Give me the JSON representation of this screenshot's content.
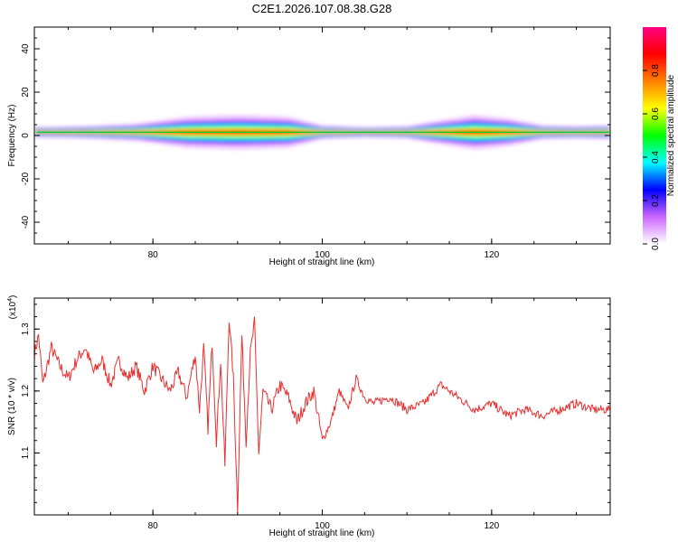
{
  "title": "C2E1.2026.107.08.38.G28",
  "colors": {
    "snr_line": "#e83030",
    "spectrogram_ridge": "#00cc33"
  },
  "chart_data": [
    {
      "type": "heatmap",
      "xlabel": "Height of straight line (km)",
      "ylabel": "Frequency (Hz)",
      "xlim": [
        66,
        134
      ],
      "ylim": [
        -50,
        50
      ],
      "x_ticks": [
        {
          "value": 80,
          "label": "80"
        },
        {
          "value": 100,
          "label": "100"
        },
        {
          "value": 120,
          "label": "120"
        }
      ],
      "y_ticks": [
        {
          "value": 40,
          "label": "40"
        },
        {
          "value": 20,
          "label": "20"
        },
        {
          "value": 0,
          "label": "0"
        },
        {
          "value": -20,
          "label": "-20"
        },
        {
          "value": -40,
          "label": "-40"
        }
      ],
      "ridge_frequency_hz": 1.5,
      "band_halfwidth_hz": [
        {
          "x": 66,
          "w": 1.5
        },
        {
          "x": 72,
          "w": 1.8
        },
        {
          "x": 78,
          "w": 2.5
        },
        {
          "x": 84,
          "w": 4.5
        },
        {
          "x": 90,
          "w": 5
        },
        {
          "x": 96,
          "w": 4.5
        },
        {
          "x": 100,
          "w": 2
        },
        {
          "x": 105,
          "w": 1.5
        },
        {
          "x": 110,
          "w": 1.8
        },
        {
          "x": 114,
          "w": 3.5
        },
        {
          "x": 118,
          "w": 5
        },
        {
          "x": 122,
          "w": 4
        },
        {
          "x": 126,
          "w": 2
        },
        {
          "x": 130,
          "w": 1.8
        },
        {
          "x": 134,
          "w": 2
        }
      ],
      "colorbar": {
        "label": "Normalized spectral amplitude",
        "range": [
          0,
          1
        ],
        "ticks": [
          {
            "value": 0.0,
            "label": "0.0"
          },
          {
            "value": 0.2,
            "label": "0.2"
          },
          {
            "value": 0.4,
            "label": "0.4"
          },
          {
            "value": 0.6,
            "label": "0.6"
          },
          {
            "value": 0.8,
            "label": "0.8"
          }
        ],
        "colormap": [
          "#ffffff",
          "#cc66ff",
          "#0000ff",
          "#00ffff",
          "#00ff00",
          "#ffff00",
          "#ff8000",
          "#ff0000",
          "#ff0080"
        ]
      }
    },
    {
      "type": "line",
      "xlabel": "Height of straight line (km)",
      "ylabel": "SNR (10 * v/v)",
      "y_multiplier_label": "(x10",
      "y_multiplier_exponent": "4",
      "y_multiplier_close": ")",
      "xlim": [
        66,
        134
      ],
      "ylim": [
        1.0,
        1.35
      ],
      "x_ticks": [
        {
          "value": 80,
          "label": "80"
        },
        {
          "value": 100,
          "label": "100"
        },
        {
          "value": 120,
          "label": "120"
        }
      ],
      "y_ticks": [
        {
          "value": 1.1,
          "label": "1.1"
        },
        {
          "value": 1.2,
          "label": "1.2"
        },
        {
          "value": 1.3,
          "label": "1.3"
        }
      ],
      "series": [
        {
          "x": [
            66,
            66.5,
            67,
            68,
            69,
            70,
            71,
            72,
            73,
            74,
            75,
            76,
            77,
            78,
            79,
            80,
            81,
            82,
            83,
            84,
            85,
            85.5,
            86,
            86.5,
            87,
            87.5,
            88,
            88.5,
            89,
            89.5,
            90,
            90.5,
            91,
            91.5,
            92,
            92.5,
            93,
            94,
            95,
            96,
            97,
            98,
            99,
            100,
            101,
            102,
            103,
            104,
            105,
            106,
            108,
            110,
            112,
            114,
            116,
            118,
            120,
            122,
            124,
            126,
            128,
            130,
            132,
            134
          ],
          "y": [
            1.26,
            1.29,
            1.21,
            1.27,
            1.24,
            1.22,
            1.25,
            1.27,
            1.23,
            1.25,
            1.21,
            1.25,
            1.22,
            1.24,
            1.2,
            1.24,
            1.22,
            1.2,
            1.23,
            1.19,
            1.26,
            1.17,
            1.27,
            1.14,
            1.28,
            1.12,
            1.25,
            1.08,
            1.32,
            1.22,
            1.01,
            1.29,
            1.12,
            1.26,
            1.31,
            1.1,
            1.2,
            1.17,
            1.21,
            1.19,
            1.15,
            1.18,
            1.2,
            1.12,
            1.15,
            1.2,
            1.17,
            1.22,
            1.19,
            1.18,
            1.19,
            1.17,
            1.18,
            1.21,
            1.19,
            1.17,
            1.18,
            1.16,
            1.17,
            1.16,
            1.17,
            1.18,
            1.17,
            1.17
          ]
        }
      ]
    }
  ]
}
